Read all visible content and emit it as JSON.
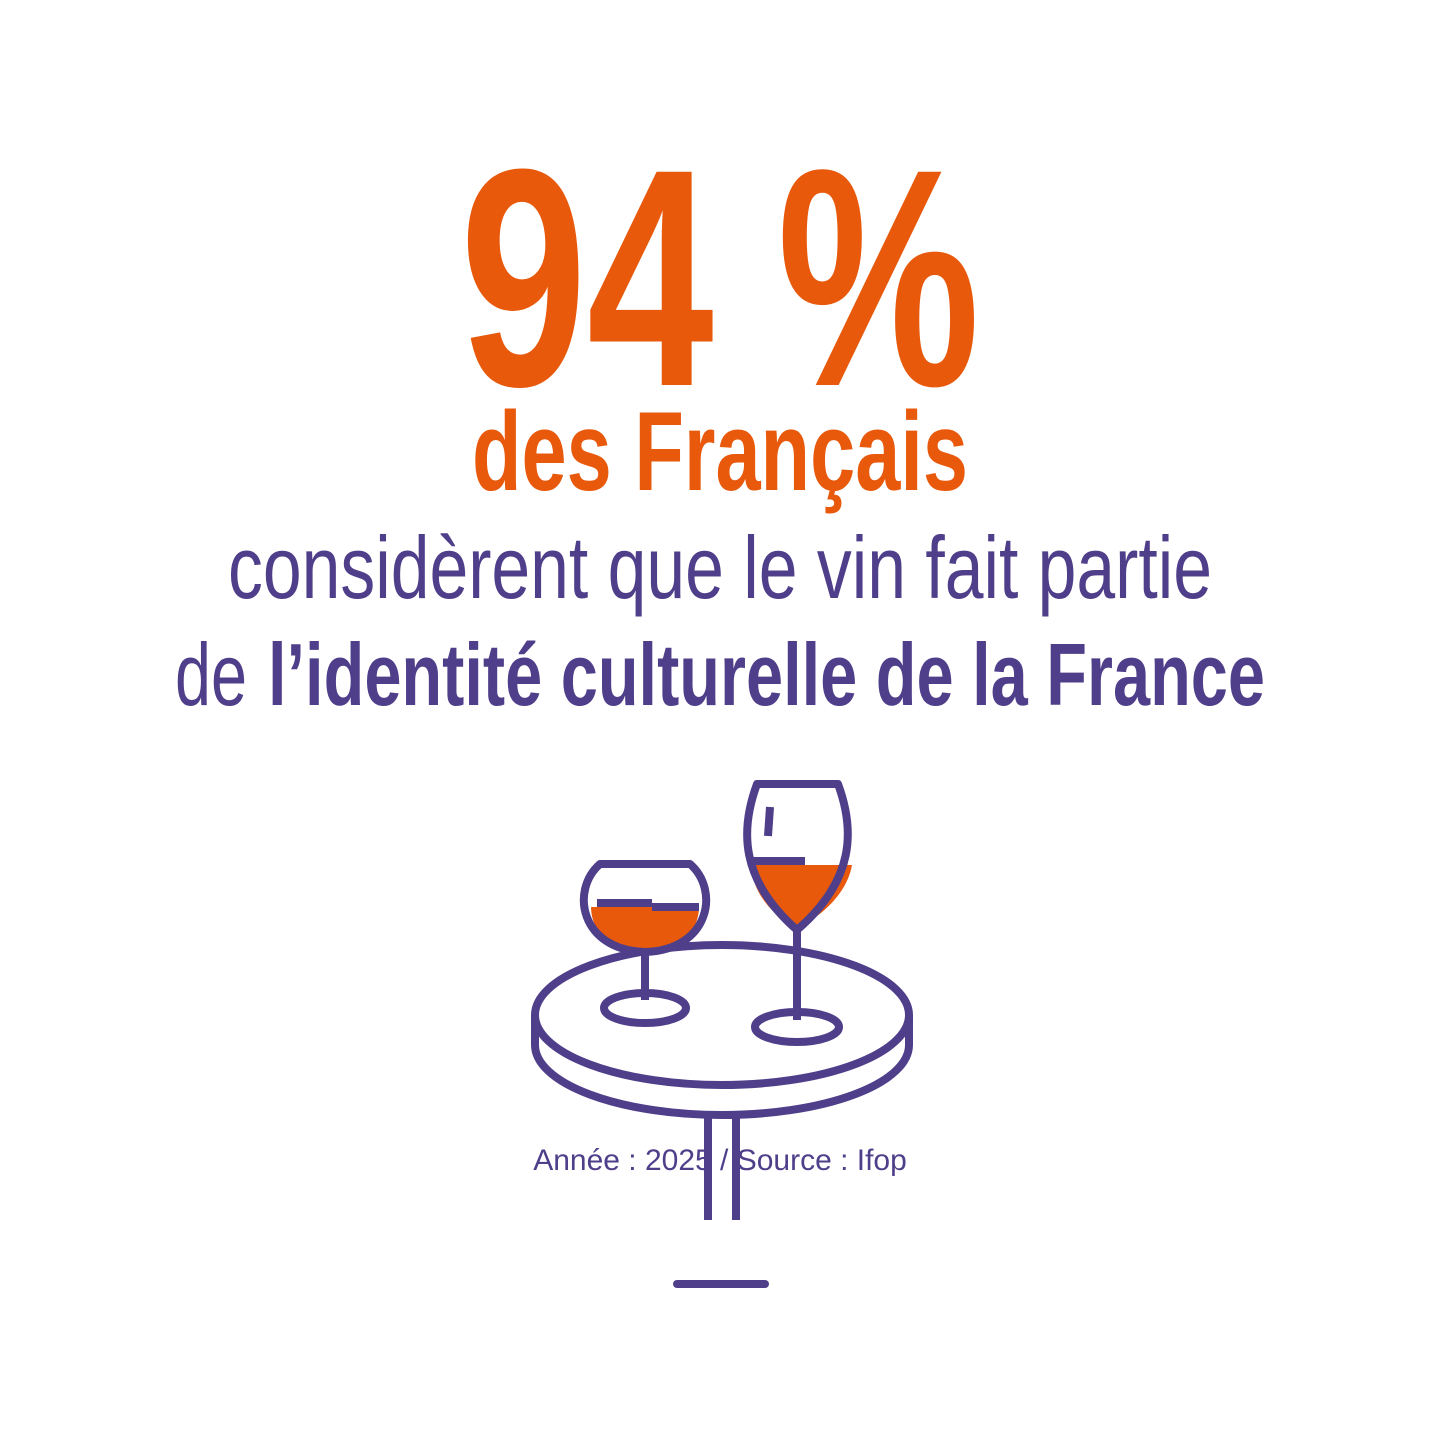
{
  "headline": {
    "figure": "94 %",
    "subject": "des Français"
  },
  "statement": {
    "line1": "considèrent que le vin fait partie",
    "line2_prefix": "de",
    "line2_emphasis": "l’identité culturelle de la France"
  },
  "footer": {
    "source": "Année : 2025 / Source : Ifop"
  }
}
